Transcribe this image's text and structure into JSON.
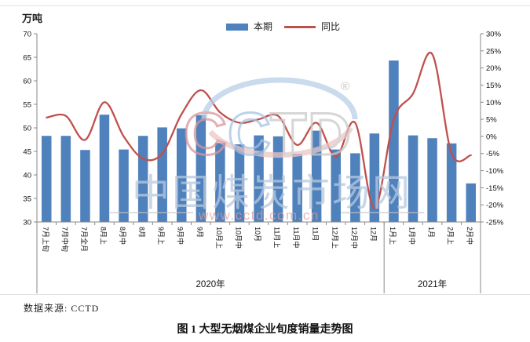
{
  "chart_data": {
    "type": "combo_bar_line",
    "title": "",
    "categories": [
      "7月上旬",
      "7月中旬",
      "7月全月",
      "8月上",
      "8月中",
      "8月",
      "9月上",
      "9月中",
      "9月",
      "10月上",
      "10月中",
      "10月",
      "11月上",
      "11月中",
      "11月",
      "12月上",
      "12月中",
      "12月",
      "1月上",
      "1月中",
      "1月",
      "2月上",
      "2月中"
    ],
    "series": [
      {
        "name": "本期",
        "type": "bar",
        "axis": "left",
        "unit": "万吨",
        "color": "#4f81bd",
        "values": [
          48.3,
          48.3,
          45.3,
          52.8,
          45.4,
          48.3,
          50.1,
          49.9,
          52.7,
          46.8,
          46.5,
          48.4,
          48.2,
          44.5,
          49.4,
          45.4,
          44.6,
          48.8,
          64.3,
          48.4,
          47.8,
          46.7,
          38.2
        ]
      },
      {
        "name": "同比",
        "type": "line",
        "axis": "right",
        "unit": "%",
        "color": "#c0504d",
        "smooth": true,
        "values": [
          5.5,
          6,
          -1,
          10,
          0,
          -6.5,
          -5,
          6.5,
          13.5,
          7,
          4,
          5,
          6,
          -2.5,
          4,
          -6,
          4,
          -21,
          5,
          12.5,
          24,
          -5,
          -5.5
        ]
      }
    ],
    "left_axis": {
      "title": "万吨",
      "min": 30,
      "max": 70,
      "step": 5,
      "ticks": [
        "70",
        "65",
        "60",
        "55",
        "50",
        "45",
        "40",
        "35",
        "30"
      ]
    },
    "right_axis": {
      "min": -25,
      "max": 30,
      "step": 5,
      "ticks": [
        "30%",
        "25%",
        "20%",
        "15%",
        "10%",
        "5%",
        "0%",
        "-5%",
        "-10%",
        "-15%",
        "-20%",
        "-25%"
      ]
    },
    "year_groups": [
      {
        "label": "2020年",
        "span": 18
      },
      {
        "label": "2021年",
        "span": 5
      }
    ],
    "legend": [
      {
        "label": "本期",
        "marker": "bar",
        "color": "#4f81bd"
      },
      {
        "label": "同比",
        "marker": "line",
        "color": "#c0504d"
      }
    ],
    "grid": "off",
    "legend_position": "top-center"
  },
  "watermark": {
    "logo_text": "CCTD",
    "logo_letter_colors": [
      "#d9959c",
      "#a6c3e2",
      "#c9c9c9",
      "#c9c9c9"
    ],
    "registered_mark": "®",
    "site_name": "中国煤炭市场网",
    "site_url": "www.cctd.com.cn"
  },
  "source_note": "数据来源: CCTD",
  "caption": "图 1  大型无烟煤企业旬度销量走势图"
}
